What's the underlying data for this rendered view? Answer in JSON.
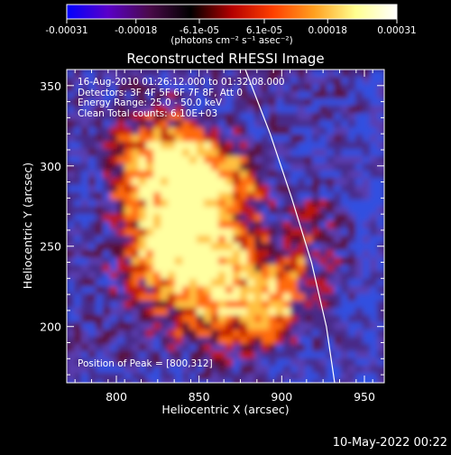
{
  "colorbar": {
    "tick_labels": [
      "-0.00031",
      "-0.00018",
      "-6.1e-05",
      "6.1e-05",
      "0.00018",
      "0.00031"
    ],
    "tick_values": [
      -0.00031,
      -0.00018,
      -6.1e-05,
      6.1e-05,
      0.00018,
      0.00031
    ],
    "range": [
      -0.00031,
      0.00031
    ],
    "units": "(photons cm⁻² s⁻¹ asec⁻²)",
    "stops": [
      "#0000ff",
      "#5a00c8",
      "#4a0a4a",
      "#000000",
      "#b40000",
      "#ff4000",
      "#ffa020",
      "#ffff90",
      "#ffffff"
    ]
  },
  "chart_data": {
    "type": "heatmap",
    "title": "Reconstructed RHESSI Image",
    "xlabel": "Heliocentric X (arcsec)",
    "ylabel": "Heliocentric Y (arcsec)",
    "xlim": [
      770,
      962
    ],
    "ylim": [
      165,
      360
    ],
    "xticks": [
      800,
      850,
      900,
      950
    ],
    "yticks": [
      200,
      250,
      300,
      350
    ],
    "limb_curve": {
      "points": [
        [
          878,
          360
        ],
        [
          893,
          320
        ],
        [
          906,
          280
        ],
        [
          918,
          240
        ],
        [
          927,
          200
        ],
        [
          932,
          165
        ]
      ]
    },
    "peak_position": [
      800,
      312
    ]
  },
  "info": {
    "time_range": "16-Aug-2010 01:26:12.000 to 01:32:08.000",
    "detectors": "Detectors: 3F 4F 5F 6F 7F 8F, Att 0",
    "energy": "Energy Range: 25.0 - 50.0 keV",
    "clean": "Clean    Total counts: 6.10E+03",
    "peak": "Position of Peak = [800,312]"
  },
  "footer": {
    "date": "10-May-2022 00:22"
  }
}
